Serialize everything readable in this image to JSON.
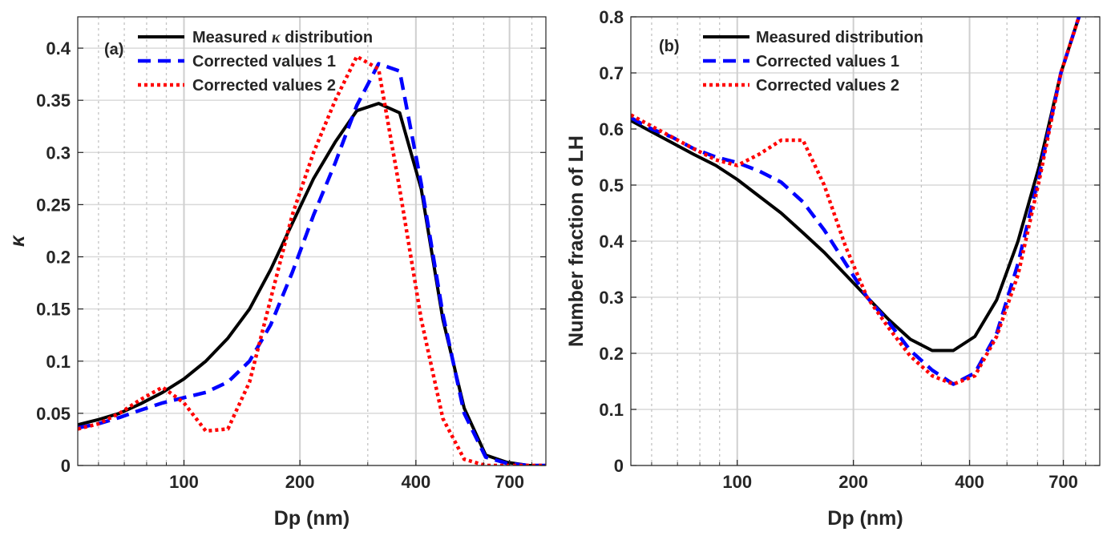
{
  "chart_data": [
    {
      "type": "line",
      "panel_label": "(a)",
      "xlabel": "Dp (nm)",
      "ylabel": "κ",
      "xscale": "log",
      "xlim": [
        53,
        870
      ],
      "ylim": [
        0,
        0.43
      ],
      "xticks": [
        100,
        200,
        400,
        700
      ],
      "xtick_labels": [
        "100",
        "200",
        "400",
        "700"
      ],
      "minor_xticks": [
        60,
        70,
        80,
        90,
        300,
        500,
        600,
        800
      ],
      "yticks": [
        0,
        0.05,
        0.1,
        0.15,
        0.2,
        0.25,
        0.3,
        0.35,
        0.4
      ],
      "ytick_labels": [
        "0",
        "0.05",
        "0.1",
        "0.15",
        "0.2",
        "0.25",
        "0.3",
        "0.35",
        "0.4"
      ],
      "grid": true,
      "legend_position": "top-left",
      "series": [
        {
          "name": "Measured κ distribution",
          "legend_prefix": "Measured ",
          "legend_symbol": "κ",
          "legend_suffix": " distribution",
          "style": "solid",
          "color": "#000000",
          "x": [
            53,
            60,
            68,
            77,
            88,
            100,
            114,
            130,
            148,
            168,
            191,
            217,
            247,
            281,
            320,
            363,
            413,
            470,
            534,
            607,
            690,
            785,
            870
          ],
          "y": [
            0.039,
            0.044,
            0.05,
            0.059,
            0.07,
            0.083,
            0.1,
            0.122,
            0.15,
            0.188,
            0.232,
            0.275,
            0.31,
            0.34,
            0.347,
            0.338,
            0.265,
            0.14,
            0.055,
            0.01,
            0.003,
            0.0,
            0.0
          ]
        },
        {
          "name": "Corrected values 1",
          "style": "dashed",
          "color": "#0000ff",
          "x": [
            53,
            60,
            68,
            77,
            88,
            100,
            114,
            130,
            148,
            168,
            191,
            217,
            247,
            281,
            320,
            363,
            413,
            470,
            534,
            607,
            690,
            785,
            870
          ],
          "y": [
            0.036,
            0.04,
            0.046,
            0.053,
            0.06,
            0.065,
            0.07,
            0.08,
            0.1,
            0.135,
            0.185,
            0.24,
            0.29,
            0.345,
            0.385,
            0.378,
            0.27,
            0.145,
            0.05,
            0.008,
            0.002,
            0.0,
            0.0
          ]
        },
        {
          "name": "Corrected values 2",
          "style": "dotted",
          "color": "#ff0000",
          "x": [
            53,
            60,
            68,
            77,
            88,
            100,
            114,
            130,
            148,
            168,
            191,
            217,
            247,
            281,
            320,
            363,
            413,
            470,
            534,
            607,
            690,
            785,
            870
          ],
          "y": [
            0.035,
            0.04,
            0.05,
            0.063,
            0.075,
            0.06,
            0.033,
            0.035,
            0.08,
            0.16,
            0.24,
            0.3,
            0.35,
            0.392,
            0.38,
            0.265,
            0.14,
            0.045,
            0.006,
            0.0,
            0.0,
            0.0,
            0.0
          ]
        }
      ]
    },
    {
      "type": "line",
      "panel_label": "(b)",
      "xlabel": "Dp (nm)",
      "ylabel": "Number fraction of LH",
      "xscale": "log",
      "xlim": [
        53,
        870
      ],
      "ylim": [
        0,
        0.8
      ],
      "xticks": [
        100,
        200,
        400,
        700
      ],
      "xtick_labels": [
        "100",
        "200",
        "400",
        "700"
      ],
      "minor_xticks": [
        60,
        70,
        80,
        90,
        300,
        500,
        600,
        800
      ],
      "yticks": [
        0,
        0.1,
        0.2,
        0.3,
        0.4,
        0.5,
        0.6,
        0.7,
        0.8
      ],
      "ytick_labels": [
        "0",
        "0.1",
        "0.2",
        "0.3",
        "0.4",
        "0.5",
        "0.6",
        "0.7",
        "0.8"
      ],
      "grid": true,
      "legend_position": "top-left",
      "series": [
        {
          "name": "Measured distribution",
          "style": "solid",
          "color": "#000000",
          "x": [
            53,
            60,
            68,
            77,
            88,
            100,
            114,
            130,
            148,
            168,
            191,
            217,
            247,
            281,
            320,
            363,
            413,
            470,
            534,
            607,
            690,
            785
          ],
          "y": [
            0.615,
            0.595,
            0.575,
            0.555,
            0.535,
            0.51,
            0.48,
            0.45,
            0.415,
            0.38,
            0.34,
            0.3,
            0.26,
            0.225,
            0.205,
            0.205,
            0.23,
            0.295,
            0.4,
            0.535,
            0.7,
            0.82
          ]
        },
        {
          "name": "Corrected values 1",
          "style": "dashed",
          "color": "#0000ff",
          "x": [
            53,
            60,
            68,
            77,
            88,
            100,
            114,
            130,
            148,
            168,
            191,
            217,
            247,
            281,
            320,
            363,
            413,
            470,
            534,
            607,
            690,
            785
          ],
          "y": [
            0.62,
            0.6,
            0.585,
            0.565,
            0.55,
            0.54,
            0.525,
            0.505,
            0.47,
            0.42,
            0.36,
            0.3,
            0.255,
            0.205,
            0.17,
            0.145,
            0.165,
            0.235,
            0.36,
            0.52,
            0.7,
            0.82
          ]
        },
        {
          "name": "Corrected values 2",
          "style": "dotted",
          "color": "#ff0000",
          "x": [
            53,
            60,
            68,
            77,
            88,
            100,
            114,
            130,
            148,
            168,
            191,
            217,
            247,
            281,
            320,
            363,
            413,
            470,
            534,
            607,
            690,
            785
          ],
          "y": [
            0.625,
            0.605,
            0.585,
            0.565,
            0.545,
            0.535,
            0.555,
            0.58,
            0.58,
            0.5,
            0.39,
            0.3,
            0.245,
            0.195,
            0.16,
            0.145,
            0.16,
            0.23,
            0.34,
            0.51,
            0.7,
            0.82
          ]
        }
      ]
    }
  ]
}
